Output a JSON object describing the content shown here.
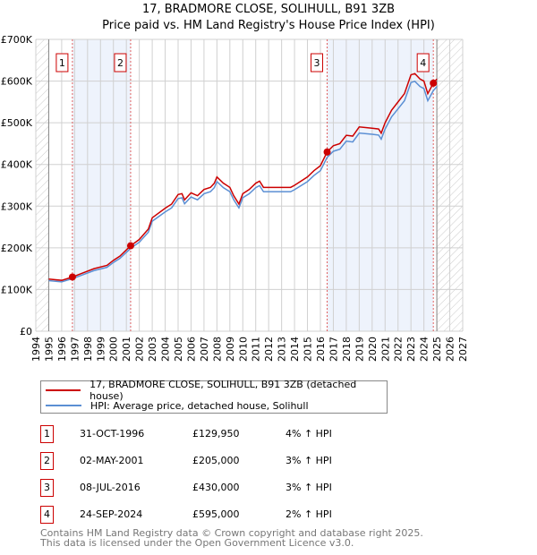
{
  "title": "17, BRADMORE CLOSE, SOLIHULL, B91 3ZB",
  "subtitle": "Price paid vs. HM Land Registry's House Price Index (HPI)",
  "chart_data": {
    "type": "line",
    "xlim": [
      1994,
      2027
    ],
    "ylim": [
      0,
      700000
    ],
    "y_ticks": [
      {
        "v": 0,
        "label": "£0"
      },
      {
        "v": 100000,
        "label": "£100K"
      },
      {
        "v": 200000,
        "label": "£200K"
      },
      {
        "v": 300000,
        "label": "£300K"
      },
      {
        "v": 400000,
        "label": "£400K"
      },
      {
        "v": 500000,
        "label": "£500K"
      },
      {
        "v": 600000,
        "label": "£600K"
      },
      {
        "v": 700000,
        "label": "£700K"
      }
    ],
    "x_ticks": [
      "1994",
      "1995",
      "1996",
      "1997",
      "1998",
      "1999",
      "2000",
      "2001",
      "2002",
      "2003",
      "2004",
      "2005",
      "2006",
      "2007",
      "2008",
      "2009",
      "2010",
      "2011",
      "2012",
      "2013",
      "2014",
      "2015",
      "2016",
      "2017",
      "2018",
      "2019",
      "2020",
      "2021",
      "2022",
      "2023",
      "2024",
      "2025",
      "2026",
      "2027"
    ],
    "data_range": [
      1995,
      2025
    ],
    "shaded_ranges": [
      [
        1996.83,
        2001.33
      ],
      [
        2016.52,
        2024.73
      ]
    ],
    "series": [
      {
        "name": "17, BRADMORE CLOSE, SOLIHULL, B91 3ZB (detached house)",
        "color": "#cc0000",
        "points": [
          [
            1995,
            125000
          ],
          [
            1996,
            122000
          ],
          [
            1996.83,
            129950
          ],
          [
            1997.5,
            138000
          ],
          [
            1998.5,
            150000
          ],
          [
            1999.5,
            158000
          ],
          [
            2000,
            170000
          ],
          [
            2000.5,
            180000
          ],
          [
            2001.33,
            205000
          ],
          [
            2002,
            220000
          ],
          [
            2002.7,
            245000
          ],
          [
            2003,
            272000
          ],
          [
            2004,
            295000
          ],
          [
            2004.5,
            305000
          ],
          [
            2005,
            328000
          ],
          [
            2005.3,
            330000
          ],
          [
            2005.5,
            315000
          ],
          [
            2006,
            332000
          ],
          [
            2006.5,
            325000
          ],
          [
            2007,
            340000
          ],
          [
            2007.5,
            345000
          ],
          [
            2007.8,
            355000
          ],
          [
            2008,
            370000
          ],
          [
            2008.5,
            355000
          ],
          [
            2009,
            345000
          ],
          [
            2009.3,
            325000
          ],
          [
            2009.7,
            305000
          ],
          [
            2010,
            330000
          ],
          [
            2010.5,
            340000
          ],
          [
            2011,
            355000
          ],
          [
            2011.3,
            360000
          ],
          [
            2011.6,
            345000
          ],
          [
            2012,
            345000
          ],
          [
            2013,
            345000
          ],
          [
            2013.7,
            345000
          ],
          [
            2014,
            350000
          ],
          [
            2015,
            370000
          ],
          [
            2015.5,
            385000
          ],
          [
            2016,
            397000
          ],
          [
            2016.52,
            430000
          ],
          [
            2017,
            445000
          ],
          [
            2017.5,
            450000
          ],
          [
            2018,
            470000
          ],
          [
            2018.5,
            468000
          ],
          [
            2019,
            490000
          ],
          [
            2020,
            487000
          ],
          [
            2020.5,
            485000
          ],
          [
            2020.7,
            475000
          ],
          [
            2021,
            500000
          ],
          [
            2021.5,
            530000
          ],
          [
            2022,
            550000
          ],
          [
            2022.5,
            570000
          ],
          [
            2023,
            615000
          ],
          [
            2023.3,
            618000
          ],
          [
            2023.7,
            605000
          ],
          [
            2024,
            600000
          ],
          [
            2024.3,
            570000
          ],
          [
            2024.73,
            595000
          ],
          [
            2025,
            605000
          ]
        ]
      },
      {
        "name": "HPI: Average price, detached house, Solihull",
        "color": "#5b8fd4",
        "ratio_to_red": 0.97
      }
    ],
    "sales": [
      {
        "n": "1",
        "x": 1996.83,
        "y": 129950,
        "date": "31-OCT-1996",
        "price": "£129,950",
        "hpi": "4% ↑ HPI"
      },
      {
        "n": "2",
        "x": 2001.33,
        "y": 205000,
        "date": "02-MAY-2001",
        "price": "£205,000",
        "hpi": "3% ↑ HPI"
      },
      {
        "n": "3",
        "x": 2016.52,
        "y": 430000,
        "date": "08-JUL-2016",
        "price": "£430,000",
        "hpi": "3% ↑ HPI"
      },
      {
        "n": "4",
        "x": 2024.73,
        "y": 595000,
        "date": "24-SEP-2024",
        "price": "£595,000",
        "hpi": "2% ↑ HPI"
      }
    ]
  },
  "legend": {
    "red": "17, BRADMORE CLOSE, SOLIHULL, B91 3ZB (detached house)",
    "blue": "HPI: Average price, detached house, Solihull"
  },
  "footer": {
    "line1": "Contains HM Land Registry data © Crown copyright and database right 2025.",
    "line2": "This data is licensed under the Open Government Licence v3.0."
  }
}
